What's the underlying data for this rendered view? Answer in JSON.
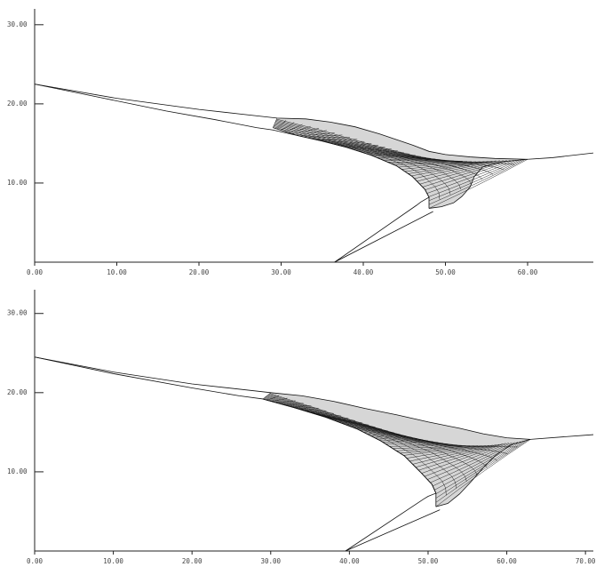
{
  "chart_data": [
    {
      "type": "line",
      "title": "",
      "xlabel": "",
      "ylabel": "",
      "xlim": [
        0,
        68
      ],
      "ylim": [
        0,
        32
      ],
      "x_ticks": [
        "0.00",
        "10.00",
        "20.00",
        "30.00",
        "40.00",
        "50.00",
        "60.00"
      ],
      "x_tick_values": [
        0,
        10,
        20,
        30,
        40,
        50,
        60
      ],
      "y_ticks": [
        "10.00",
        "20.00",
        "30.00"
      ],
      "y_tick_values": [
        10,
        20,
        30
      ],
      "grid": false,
      "shapes": {
        "upper_band": [
          [
            0,
            22.5
          ],
          [
            10,
            20.7
          ],
          [
            20,
            19.3
          ],
          [
            29.5,
            18.2
          ],
          [
            33,
            18.1
          ],
          [
            36,
            17.7
          ],
          [
            39,
            17.1
          ],
          [
            42,
            16.2
          ],
          [
            44,
            15.5
          ],
          [
            46,
            14.8
          ],
          [
            48,
            14.0
          ],
          [
            50,
            13.6
          ],
          [
            53,
            13.3
          ],
          [
            56,
            13.1
          ],
          [
            60,
            13.0
          ],
          [
            63,
            13.2
          ],
          [
            68,
            13.8
          ]
        ],
        "lower_band": [
          [
            0,
            22.5
          ],
          [
            8,
            20.8
          ],
          [
            16,
            19.1
          ],
          [
            22,
            18.0
          ],
          [
            27,
            17.0
          ],
          [
            29,
            16.7
          ],
          [
            32,
            16.0
          ],
          [
            35,
            15.3
          ],
          [
            38,
            14.5
          ],
          [
            41,
            13.5
          ],
          [
            44,
            12.2
          ],
          [
            46,
            10.8
          ],
          [
            47.5,
            9.2
          ],
          [
            48,
            8.2
          ],
          [
            47,
            7.6
          ],
          [
            46.5,
            7.2
          ],
          [
            36.5,
            0
          ]
        ],
        "mesh_leading_edge": [
          [
            29,
            17.0
          ],
          [
            32,
            16.0
          ],
          [
            35,
            15.3
          ],
          [
            38,
            14.5
          ],
          [
            41,
            13.5
          ],
          [
            44,
            12.2
          ],
          [
            46,
            10.8
          ],
          [
            47.5,
            9.2
          ],
          [
            48,
            8.2
          ],
          [
            48,
            6.8
          ]
        ],
        "mesh_trailing_edge": [
          [
            29.5,
            18.2
          ],
          [
            33,
            18.1
          ],
          [
            36,
            17.7
          ],
          [
            39,
            17.1
          ],
          [
            42,
            16.2
          ],
          [
            44,
            15.5
          ],
          [
            46,
            14.8
          ],
          [
            48,
            14.0
          ],
          [
            50,
            13.6
          ],
          [
            53,
            13.3
          ],
          [
            56,
            13.1
          ],
          [
            60,
            13.0
          ]
        ],
        "mesh_inner_edge": [
          [
            48,
            6.8
          ],
          [
            49.5,
            7.0
          ],
          [
            51,
            7.5
          ],
          [
            52,
            8.3
          ],
          [
            53,
            9.5
          ],
          [
            53.5,
            10.8
          ],
          [
            54.5,
            12.0
          ],
          [
            57,
            12.7
          ],
          [
            60,
            13.0
          ]
        ],
        "mesh_line_count": 48
      }
    },
    {
      "type": "line",
      "title": "",
      "xlabel": "",
      "ylabel": "",
      "xlim": [
        0,
        71
      ],
      "ylim": [
        0,
        33
      ],
      "x_ticks": [
        "0.00",
        "10.00",
        "20.00",
        "30.00",
        "40.00",
        "50.00",
        "60.00",
        "70.00"
      ],
      "x_tick_values": [
        0,
        10,
        20,
        30,
        40,
        50,
        60,
        70
      ],
      "y_ticks": [
        "10.00",
        "20.00",
        "30.00"
      ],
      "y_tick_values": [
        10,
        20,
        30
      ],
      "grid": false,
      "shapes": {
        "upper_band": [
          [
            0,
            24.5
          ],
          [
            10,
            22.6
          ],
          [
            20,
            21.1
          ],
          [
            30,
            20.0
          ],
          [
            34,
            19.6
          ],
          [
            38,
            18.9
          ],
          [
            42,
            18.0
          ],
          [
            46,
            17.2
          ],
          [
            50,
            16.3
          ],
          [
            54,
            15.5
          ],
          [
            57,
            14.8
          ],
          [
            60,
            14.3
          ],
          [
            63,
            14.1
          ],
          [
            71,
            14.7
          ]
        ],
        "lower_band": [
          [
            0,
            24.5
          ],
          [
            10,
            22.4
          ],
          [
            20,
            20.6
          ],
          [
            26,
            19.6
          ],
          [
            29,
            19.2
          ],
          [
            33,
            18.1
          ],
          [
            37,
            16.9
          ],
          [
            41,
            15.4
          ],
          [
            44,
            13.9
          ],
          [
            47,
            12.0
          ],
          [
            49,
            10.0
          ],
          [
            50.5,
            8.4
          ],
          [
            51,
            7.3
          ],
          [
            50,
            6.9
          ],
          [
            49.5,
            6.6
          ],
          [
            39.5,
            0
          ]
        ],
        "mesh_leading_edge": [
          [
            29,
            19.2
          ],
          [
            33,
            18.1
          ],
          [
            37,
            16.9
          ],
          [
            41,
            15.4
          ],
          [
            44,
            13.9
          ],
          [
            47,
            12.0
          ],
          [
            49,
            10.0
          ],
          [
            50.5,
            8.4
          ],
          [
            51,
            7.3
          ],
          [
            51,
            5.6
          ]
        ],
        "mesh_trailing_edge": [
          [
            30,
            20.0
          ],
          [
            34,
            19.6
          ],
          [
            38,
            18.9
          ],
          [
            42,
            18.0
          ],
          [
            46,
            17.2
          ],
          [
            50,
            16.3
          ],
          [
            54,
            15.5
          ],
          [
            57,
            14.8
          ],
          [
            60,
            14.3
          ],
          [
            63,
            14.1
          ]
        ],
        "mesh_inner_edge": [
          [
            51,
            5.6
          ],
          [
            52.5,
            6.0
          ],
          [
            54,
            7.2
          ],
          [
            55.5,
            8.8
          ],
          [
            57,
            10.5
          ],
          [
            58.5,
            12.0
          ],
          [
            60.5,
            13.4
          ],
          [
            63,
            14.1
          ]
        ],
        "mesh_line_count": 52
      }
    }
  ]
}
